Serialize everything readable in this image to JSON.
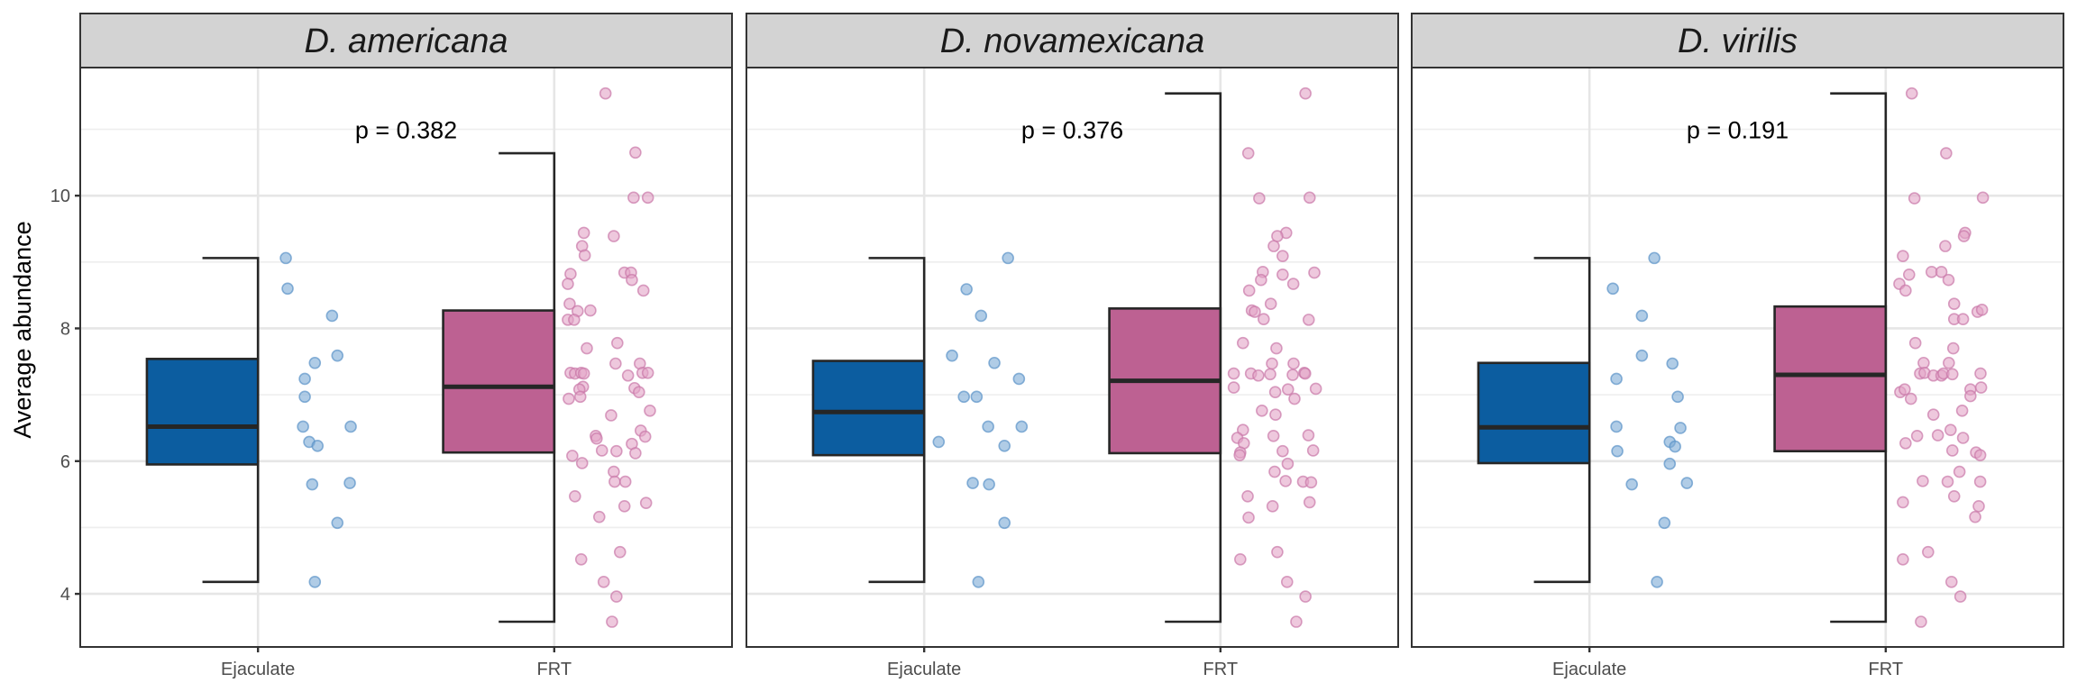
{
  "chart_data": {
    "type": "boxplot",
    "ylabel": "Average abundance",
    "xlabel": "",
    "ylim": [
      3.2,
      11.93
    ],
    "yticks": [
      4,
      6,
      8,
      10
    ],
    "ytick_labels": [
      "4",
      "6",
      "8",
      "10"
    ],
    "grid": true,
    "categories": [
      "Ejaculate",
      "FRT"
    ],
    "colors": {
      "Ejaculate": {
        "box": "#0c5da0",
        "point_fill": "#7baad6",
        "point_stroke": "#5b93c8"
      },
      "FRT": {
        "box": "#bd6192",
        "point_fill": "#e2a3c7",
        "point_stroke": "#c978a8"
      }
    },
    "point_alpha": 0.5,
    "panels": [
      {
        "title": "D. americana",
        "p_label": "p = 0.382",
        "p_y": 11.0,
        "boxes": [
          {
            "category": "Ejaculate",
            "whisker_low": 4.18,
            "q1": 5.95,
            "median": 6.52,
            "q3": 7.54,
            "whisker_high": 9.06
          },
          {
            "category": "FRT",
            "whisker_low": 3.58,
            "q1": 6.13,
            "median": 7.12,
            "q3": 8.27,
            "whisker_high": 10.64
          }
        ],
        "points": {
          "Ejaculate": [
            [
              1.094,
              9.06
            ],
            [
              1.1,
              8.6
            ],
            [
              1.25,
              8.19
            ],
            [
              1.268,
              7.59
            ],
            [
              1.192,
              7.48
            ],
            [
              1.158,
              7.24
            ],
            [
              1.158,
              6.97
            ],
            [
              1.152,
              6.52
            ],
            [
              1.313,
              6.52
            ],
            [
              1.173,
              6.29
            ],
            [
              1.201,
              6.23
            ],
            [
              1.183,
              5.65
            ],
            [
              1.31,
              5.67
            ],
            [
              1.268,
              5.07
            ],
            [
              1.192,
              4.18
            ]
          ],
          "FRT": [
            [
              2.173,
              11.54
            ],
            [
              2.274,
              10.65
            ],
            [
              2.268,
              9.97
            ],
            [
              2.316,
              9.97
            ],
            [
              2.1,
              9.44
            ],
            [
              2.201,
              9.39
            ],
            [
              2.094,
              9.24
            ],
            [
              2.103,
              9.1
            ],
            [
              2.055,
              8.82
            ],
            [
              2.046,
              8.67
            ],
            [
              2.237,
              8.84
            ],
            [
              2.259,
              8.84
            ],
            [
              2.262,
              8.73
            ],
            [
              2.301,
              8.57
            ],
            [
              2.052,
              8.37
            ],
            [
              2.079,
              8.26
            ],
            [
              2.122,
              8.27
            ],
            [
              2.046,
              8.13
            ],
            [
              2.067,
              8.13
            ],
            [
              2.11,
              7.7
            ],
            [
              2.213,
              7.78
            ],
            [
              2.207,
              7.47
            ],
            [
              2.289,
              7.47
            ],
            [
              2.055,
              7.33
            ],
            [
              2.07,
              7.32
            ],
            [
              2.091,
              7.33
            ],
            [
              2.1,
              7.32
            ],
            [
              2.249,
              7.29
            ],
            [
              2.298,
              7.33
            ],
            [
              2.316,
              7.33
            ],
            [
              2.097,
              7.12
            ],
            [
              2.085,
              7.08
            ],
            [
              2.271,
              7.1
            ],
            [
              2.286,
              7.04
            ],
            [
              2.049,
              6.94
            ],
            [
              2.088,
              6.97
            ],
            [
              2.323,
              6.76
            ],
            [
              2.192,
              6.69
            ],
            [
              2.292,
              6.46
            ],
            [
              2.307,
              6.37
            ],
            [
              2.14,
              6.38
            ],
            [
              2.143,
              6.34
            ],
            [
              2.161,
              6.16
            ],
            [
              2.21,
              6.15
            ],
            [
              2.262,
              6.26
            ],
            [
              2.274,
              6.12
            ],
            [
              2.061,
              6.08
            ],
            [
              2.094,
              5.97
            ],
            [
              2.201,
              5.84
            ],
            [
              2.204,
              5.69
            ],
            [
              2.24,
              5.69
            ],
            [
              2.07,
              5.47
            ],
            [
              2.237,
              5.32
            ],
            [
              2.31,
              5.37
            ],
            [
              2.152,
              5.16
            ],
            [
              2.222,
              4.63
            ],
            [
              2.091,
              4.52
            ],
            [
              2.167,
              4.18
            ],
            [
              2.21,
              3.96
            ],
            [
              2.195,
              3.58
            ]
          ]
        }
      },
      {
        "title": "D. novamexicana",
        "p_label": "p = 0.376",
        "p_y": 11.0,
        "boxes": [
          {
            "category": "Ejaculate",
            "whisker_low": 4.18,
            "q1": 6.09,
            "median": 6.74,
            "q3": 7.51,
            "whisker_high": 9.06
          },
          {
            "category": "FRT",
            "whisker_low": 3.58,
            "q1": 6.12,
            "median": 7.21,
            "q3": 8.3,
            "whisker_high": 11.54
          }
        ],
        "points": {
          "Ejaculate": [
            [
              1.283,
              9.06
            ],
            [
              1.143,
              8.59
            ],
            [
              1.192,
              8.19
            ],
            [
              1.094,
              7.59
            ],
            [
              1.237,
              7.48
            ],
            [
              1.32,
              7.24
            ],
            [
              1.134,
              6.97
            ],
            [
              1.177,
              6.97
            ],
            [
              1.216,
              6.52
            ],
            [
              1.329,
              6.52
            ],
            [
              1.049,
              6.29
            ],
            [
              1.271,
              6.23
            ],
            [
              1.164,
              5.67
            ],
            [
              1.219,
              5.65
            ],
            [
              1.271,
              5.07
            ],
            [
              1.183,
              4.18
            ]
          ],
          "FRT": [
            [
              2.287,
              11.54
            ],
            [
              2.094,
              10.64
            ],
            [
              2.131,
              9.96
            ],
            [
              2.301,
              9.97
            ],
            [
              2.222,
              9.44
            ],
            [
              2.192,
              9.39
            ],
            [
              2.18,
              9.24
            ],
            [
              2.21,
              9.09
            ],
            [
              2.143,
              8.85
            ],
            [
              2.317,
              8.84
            ],
            [
              2.137,
              8.73
            ],
            [
              2.21,
              8.81
            ],
            [
              2.246,
              8.67
            ],
            [
              2.097,
              8.57
            ],
            [
              2.17,
              8.37
            ],
            [
              2.106,
              8.27
            ],
            [
              2.116,
              8.25
            ],
            [
              2.146,
              8.14
            ],
            [
              2.298,
              8.13
            ],
            [
              2.076,
              7.78
            ],
            [
              2.189,
              7.7
            ],
            [
              2.174,
              7.47
            ],
            [
              2.247,
              7.47
            ],
            [
              2.045,
              7.32
            ],
            [
              2.103,
              7.32
            ],
            [
              2.128,
              7.29
            ],
            [
              2.168,
              7.31
            ],
            [
              2.244,
              7.3
            ],
            [
              2.283,
              7.33
            ],
            [
              2.286,
              7.32
            ],
            [
              2.045,
              7.11
            ],
            [
              2.185,
              7.04
            ],
            [
              2.228,
              7.08
            ],
            [
              2.322,
              7.09
            ],
            [
              2.25,
              6.94
            ],
            [
              2.14,
              6.76
            ],
            [
              2.186,
              6.7
            ],
            [
              2.076,
              6.47
            ],
            [
              2.057,
              6.35
            ],
            [
              2.079,
              6.27
            ],
            [
              2.179,
              6.38
            ],
            [
              2.297,
              6.39
            ],
            [
              2.067,
              6.13
            ],
            [
              2.065,
              6.09
            ],
            [
              2.21,
              6.15
            ],
            [
              2.313,
              6.16
            ],
            [
              2.227,
              5.96
            ],
            [
              2.183,
              5.84
            ],
            [
              2.22,
              5.7
            ],
            [
              2.279,
              5.69
            ],
            [
              2.306,
              5.68
            ],
            [
              2.092,
              5.47
            ],
            [
              2.176,
              5.32
            ],
            [
              2.301,
              5.38
            ],
            [
              2.095,
              5.15
            ],
            [
              2.192,
              4.63
            ],
            [
              2.067,
              4.52
            ],
            [
              2.225,
              4.18
            ],
            [
              2.287,
              3.96
            ],
            [
              2.256,
              3.58
            ]
          ]
        }
      },
      {
        "title": "D. virilis",
        "p_label": "p = 0.191",
        "p_y": 11.0,
        "boxes": [
          {
            "category": "Ejaculate",
            "whisker_low": 4.18,
            "q1": 5.97,
            "median": 6.51,
            "q3": 7.48,
            "whisker_high": 9.06
          },
          {
            "category": "FRT",
            "whisker_low": 3.58,
            "q1": 6.15,
            "median": 7.3,
            "q3": 8.33,
            "whisker_high": 11.54
          }
        ],
        "points": {
          "Ejaculate": [
            [
              1.219,
              9.06
            ],
            [
              1.079,
              8.6
            ],
            [
              1.177,
              8.19
            ],
            [
              1.177,
              7.59
            ],
            [
              1.28,
              7.47
            ],
            [
              1.091,
              7.24
            ],
            [
              1.298,
              6.97
            ],
            [
              1.091,
              6.52
            ],
            [
              1.307,
              6.5
            ],
            [
              1.271,
              6.29
            ],
            [
              1.289,
              6.22
            ],
            [
              1.094,
              6.15
            ],
            [
              1.271,
              5.96
            ],
            [
              1.143,
              5.65
            ],
            [
              1.329,
              5.67
            ],
            [
              1.253,
              5.07
            ],
            [
              1.228,
              4.18
            ]
          ],
          "FRT": [
            [
              2.088,
              11.54
            ],
            [
              2.204,
              10.64
            ],
            [
              2.097,
              9.96
            ],
            [
              2.328,
              9.97
            ],
            [
              2.268,
              9.44
            ],
            [
              2.264,
              9.39
            ],
            [
              2.201,
              9.24
            ],
            [
              2.058,
              9.09
            ],
            [
              2.079,
              8.81
            ],
            [
              2.155,
              8.85
            ],
            [
              2.188,
              8.85
            ],
            [
              2.212,
              8.73
            ],
            [
              2.046,
              8.67
            ],
            [
              2.067,
              8.57
            ],
            [
              2.231,
              8.37
            ],
            [
              2.31,
              8.25
            ],
            [
              2.325,
              8.28
            ],
            [
              2.231,
              8.14
            ],
            [
              2.261,
              8.14
            ],
            [
              2.1,
              7.78
            ],
            [
              2.228,
              7.7
            ],
            [
              2.128,
              7.48
            ],
            [
              2.213,
              7.48
            ],
            [
              2.116,
              7.32
            ],
            [
              2.131,
              7.33
            ],
            [
              2.161,
              7.29
            ],
            [
              2.188,
              7.29
            ],
            [
              2.195,
              7.32
            ],
            [
              2.225,
              7.31
            ],
            [
              2.32,
              7.32
            ],
            [
              2.049,
              7.04
            ],
            [
              2.064,
              7.08
            ],
            [
              2.085,
              6.94
            ],
            [
              2.286,
              7.08
            ],
            [
              2.322,
              7.11
            ],
            [
              2.286,
              6.98
            ],
            [
              2.258,
              6.76
            ],
            [
              2.161,
              6.7
            ],
            [
              2.219,
              6.47
            ],
            [
              2.106,
              6.38
            ],
            [
              2.176,
              6.39
            ],
            [
              2.067,
              6.27
            ],
            [
              2.261,
              6.35
            ],
            [
              2.225,
              6.16
            ],
            [
              2.305,
              6.13
            ],
            [
              2.319,
              6.09
            ],
            [
              2.249,
              5.84
            ],
            [
              2.125,
              5.7
            ],
            [
              2.209,
              5.69
            ],
            [
              2.319,
              5.69
            ],
            [
              2.231,
              5.47
            ],
            [
              2.058,
              5.38
            ],
            [
              2.314,
              5.32
            ],
            [
              2.302,
              5.16
            ],
            [
              2.143,
              4.63
            ],
            [
              2.058,
              4.52
            ],
            [
              2.222,
              4.18
            ],
            [
              2.252,
              3.96
            ],
            [
              2.119,
              3.58
            ]
          ]
        }
      }
    ]
  }
}
